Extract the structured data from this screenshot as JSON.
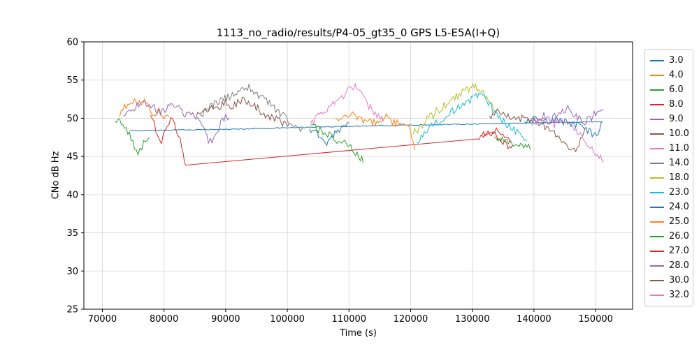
{
  "window": {
    "background_color": "#ffffff"
  },
  "chart_data": {
    "type": "line",
    "title": "1113_no_radio/results/P4-05_gt35_0 GPS L5-E5A(I+Q)",
    "xlabel": "Time (s)",
    "ylabel": "CNo dB Hz",
    "xlim": [
      67000,
      156000
    ],
    "ylim": [
      25,
      60
    ],
    "grid": true,
    "grid_color": "#d4d4d4",
    "axis_color": "#000000",
    "legend_position": "outside-right",
    "x_ticks": [
      70000,
      80000,
      90000,
      100000,
      110000,
      120000,
      130000,
      140000,
      150000
    ],
    "x_tick_labels": [
      "70000",
      "80000",
      "90000",
      "100000",
      "110000",
      "120000",
      "130000",
      "140000",
      "150000"
    ],
    "y_ticks": [
      25,
      30,
      35,
      40,
      45,
      50,
      55,
      60
    ],
    "y_tick_labels": [
      "25",
      "30",
      "35",
      "40",
      "45",
      "50",
      "55",
      "60"
    ],
    "series": [
      {
        "name": "3.0",
        "color": "#1f77b4",
        "noise": 0.06,
        "connect_gaps": true,
        "points": [
          [
            74500,
            48.35
          ],
          [
            80000,
            48.45
          ],
          [
            90000,
            48.55
          ],
          [
            100000,
            48.75
          ],
          [
            110000,
            48.95
          ],
          [
            120000,
            49.1
          ],
          [
            130000,
            49.25
          ],
          [
            140000,
            49.4
          ],
          [
            151000,
            49.55
          ]
        ]
      },
      {
        "name": "4.0",
        "color": "#ff7f0e",
        "noise": 0.55,
        "connect_gaps": false,
        "points": [
          [
            72800,
            50.2
          ],
          [
            73600,
            51.3
          ],
          [
            74400,
            52.2
          ],
          [
            75200,
            52.4
          ],
          [
            76000,
            51.8
          ],
          [
            76800,
            52.2
          ],
          [
            77600,
            51.2
          ],
          [
            78400,
            50.6
          ],
          [
            79200,
            50.9
          ],
          [
            80000,
            50.3
          ],
          [
            80800,
            49.9
          ]
        ]
      },
      {
        "name": "6.0",
        "color": "#2ca02c",
        "noise": 0.45,
        "connect_gaps": false,
        "points": [
          [
            72000,
            49.6
          ],
          [
            72800,
            49.9
          ],
          [
            73600,
            48.9
          ],
          [
            74400,
            47.8
          ],
          [
            75200,
            46.4
          ],
          [
            75800,
            45.1
          ],
          [
            76400,
            46.2
          ],
          [
            77000,
            47.3
          ],
          [
            77600,
            47.6
          ]
        ]
      },
      {
        "name": "8.0",
        "color": "#d62728",
        "noise": 0.5,
        "connect_gaps": true,
        "points": [
          [
            77800,
            50.4
          ],
          [
            78400,
            49.6
          ],
          [
            79000,
            47.6
          ],
          [
            79600,
            47.1
          ],
          [
            80200,
            48.3
          ],
          [
            80800,
            49.6
          ],
          [
            81400,
            49.9
          ],
          [
            82000,
            48.3
          ],
          [
            82600,
            47.2
          ],
          [
            83100,
            45.6
          ],
          [
            83500,
            43.8
          ],
          [
            130900,
            47.3
          ],
          [
            131800,
            48.2
          ],
          [
            132600,
            47.6
          ],
          [
            133400,
            48.4
          ],
          [
            134200,
            47.4
          ],
          [
            135000,
            46.9
          ],
          [
            135800,
            46.3
          ],
          [
            136500,
            46.0
          ]
        ]
      },
      {
        "name": "9.0",
        "color": "#9467bd",
        "noise": 0.5,
        "connect_gaps": false,
        "points": [
          [
            73400,
            50.3
          ],
          [
            74400,
            51.0
          ],
          [
            75400,
            51.6
          ],
          [
            76400,
            51.9
          ],
          [
            77400,
            52.1
          ],
          [
            78400,
            51.4
          ],
          [
            79400,
            50.8
          ],
          [
            80400,
            51.3
          ],
          [
            81400,
            51.7
          ],
          [
            82400,
            51.2
          ],
          [
            83400,
            50.6
          ],
          [
            84400,
            50.9
          ],
          [
            85400,
            50.2
          ],
          [
            86400,
            49.2
          ],
          [
            87200,
            47.2
          ],
          [
            87800,
            46.6
          ],
          [
            88400,
            47.8
          ],
          [
            89200,
            49.3
          ],
          [
            90000,
            50.1
          ],
          [
            90600,
            49.6
          ]
        ]
      },
      {
        "name": "10.0",
        "color": "#8c564b",
        "noise": 0.55,
        "connect_gaps": false,
        "points": [
          [
            85200,
            50.1
          ],
          [
            86200,
            50.8
          ],
          [
            87200,
            51.3
          ],
          [
            88200,
            51.0
          ],
          [
            89200,
            51.6
          ],
          [
            90200,
            52.0
          ],
          [
            91200,
            51.7
          ],
          [
            92200,
            52.2
          ],
          [
            93200,
            52.4
          ],
          [
            94200,
            51.8
          ],
          [
            95200,
            51.2
          ],
          [
            96200,
            50.6
          ],
          [
            97200,
            50.2
          ],
          [
            98200,
            49.8
          ],
          [
            99200,
            49.5
          ],
          [
            100300,
            49.2
          ]
        ]
      },
      {
        "name": "11.0",
        "color": "#e377c2",
        "noise": 0.5,
        "connect_gaps": false,
        "points": [
          [
            103800,
            49.3
          ],
          [
            105000,
            50.2
          ],
          [
            106200,
            51.0
          ],
          [
            107400,
            51.8
          ],
          [
            108600,
            52.6
          ],
          [
            109600,
            53.4
          ],
          [
            110400,
            54.0
          ],
          [
            111000,
            54.4
          ],
          [
            111700,
            53.6
          ],
          [
            112400,
            52.6
          ],
          [
            113200,
            51.6
          ],
          [
            114000,
            50.8
          ],
          [
            114800,
            50.2
          ],
          [
            115600,
            49.7
          ]
        ]
      },
      {
        "name": "14.0",
        "color": "#7f7f7f",
        "noise": 0.5,
        "connect_gaps": false,
        "points": [
          [
            85800,
            50.4
          ],
          [
            87000,
            51.1
          ],
          [
            88200,
            51.9
          ],
          [
            89400,
            52.4
          ],
          [
            90600,
            52.9
          ],
          [
            91800,
            53.3
          ],
          [
            93000,
            53.9
          ],
          [
            93800,
            54.1
          ],
          [
            94600,
            53.5
          ],
          [
            95600,
            52.8
          ],
          [
            96600,
            52.2
          ],
          [
            97600,
            51.5
          ],
          [
            98600,
            50.8
          ],
          [
            99600,
            50.1
          ],
          [
            100600,
            49.4
          ],
          [
            101600,
            48.9
          ],
          [
            102600,
            48.5
          ]
        ]
      },
      {
        "name": "18.0",
        "color": "#bcbd22",
        "noise": 0.6,
        "connect_gaps": false,
        "points": [
          [
            120400,
            47.9
          ],
          [
            121400,
            48.8
          ],
          [
            122400,
            49.6
          ],
          [
            123400,
            50.3
          ],
          [
            124400,
            51.0
          ],
          [
            125400,
            51.6
          ],
          [
            126400,
            52.2
          ],
          [
            127400,
            52.8
          ],
          [
            128400,
            53.3
          ],
          [
            129400,
            53.8
          ],
          [
            130300,
            54.2
          ],
          [
            131000,
            53.8
          ],
          [
            131800,
            53.2
          ],
          [
            132600,
            52.4
          ],
          [
            133400,
            51.6
          ],
          [
            134100,
            51.0
          ]
        ]
      },
      {
        "name": "23.0",
        "color": "#17becf",
        "noise": 0.5,
        "connect_gaps": false,
        "points": [
          [
            121000,
            46.9
          ],
          [
            122200,
            48.0
          ],
          [
            123400,
            48.9
          ],
          [
            124600,
            49.6
          ],
          [
            125800,
            50.3
          ],
          [
            127000,
            51.0
          ],
          [
            128200,
            51.7
          ],
          [
            129400,
            52.3
          ],
          [
            130600,
            52.8
          ],
          [
            131500,
            53.0
          ],
          [
            132400,
            52.2
          ],
          [
            133300,
            51.2
          ],
          [
            134200,
            50.3
          ],
          [
            135100,
            49.6
          ],
          [
            136000,
            49.0
          ],
          [
            137000,
            48.3
          ],
          [
            138000,
            47.6
          ],
          [
            138900,
            47.1
          ]
        ]
      },
      {
        "name": "24.0",
        "color": "#1f77b4",
        "noise": 0.45,
        "connect_gaps": false,
        "points": [
          [
            103600,
            48.6
          ],
          [
            104600,
            48.1
          ],
          [
            105600,
            47.4
          ],
          [
            106400,
            46.8
          ],
          [
            107200,
            47.6
          ],
          [
            108200,
            48.4
          ],
          [
            109200,
            48.9
          ],
          [
            110000,
            49.2
          ],
          [
            138500,
            49.6
          ],
          [
            140000,
            49.9
          ],
          [
            141500,
            49.5
          ],
          [
            143000,
            49.8
          ],
          [
            144500,
            49.6
          ],
          [
            146000,
            49.3
          ],
          [
            147500,
            49.0
          ],
          [
            148700,
            48.4
          ],
          [
            149700,
            47.9
          ],
          [
            150400,
            47.6
          ],
          [
            151200,
            49.8
          ]
        ]
      },
      {
        "name": "25.0",
        "color": "#ff7f0e",
        "noise": 0.55,
        "connect_gaps": false,
        "points": [
          [
            107800,
            50.0
          ],
          [
            108800,
            50.4
          ],
          [
            109800,
            50.1
          ],
          [
            110800,
            50.5
          ],
          [
            111800,
            50.0
          ],
          [
            112800,
            49.6
          ],
          [
            113800,
            49.3
          ],
          [
            114800,
            49.9
          ],
          [
            115800,
            50.2
          ],
          [
            116800,
            49.7
          ],
          [
            117800,
            49.3
          ],
          [
            118800,
            49.6
          ],
          [
            119600,
            48.9
          ],
          [
            120200,
            47.6
          ],
          [
            120700,
            46.1
          ]
        ]
      },
      {
        "name": "26.0",
        "color": "#2ca02c",
        "noise": 0.5,
        "connect_gaps": false,
        "points": [
          [
            103800,
            49.1
          ],
          [
            104800,
            48.7
          ],
          [
            105800,
            48.3
          ],
          [
            106800,
            47.8
          ],
          [
            107800,
            47.3
          ],
          [
            108800,
            46.9
          ],
          [
            109800,
            46.4
          ],
          [
            110800,
            45.8
          ],
          [
            111600,
            45.0
          ],
          [
            112300,
            44.6
          ],
          [
            133600,
            47.6
          ],
          [
            134600,
            47.2
          ],
          [
            135600,
            47.0
          ],
          [
            136600,
            46.8
          ],
          [
            137600,
            46.6
          ],
          [
            138600,
            46.4
          ],
          [
            139400,
            46.2
          ]
        ]
      },
      {
        "name": "27.0",
        "color": "#d62728",
        "noise": 0.5,
        "connect_gaps": false,
        "points": [
          [
            131500,
            47.8
          ],
          [
            132300,
            48.4
          ],
          [
            133100,
            47.9
          ],
          [
            133900,
            48.5
          ],
          [
            134700,
            47.8
          ],
          [
            135500,
            47.3
          ],
          [
            136300,
            46.8
          ]
        ]
      },
      {
        "name": "28.0",
        "color": "#9467bd",
        "noise": 0.5,
        "connect_gaps": false,
        "points": [
          [
            139600,
            49.1
          ],
          [
            140600,
            49.9
          ],
          [
            141600,
            50.4
          ],
          [
            142600,
            49.8
          ],
          [
            143600,
            50.3
          ],
          [
            144600,
            50.9
          ],
          [
            145500,
            51.3
          ],
          [
            146400,
            50.6
          ],
          [
            147300,
            49.9
          ],
          [
            148200,
            49.4
          ],
          [
            149100,
            50.0
          ],
          [
            150000,
            50.6
          ],
          [
            150800,
            51.1
          ],
          [
            151300,
            50.8
          ]
        ]
      },
      {
        "name": "30.0",
        "color": "#8c564b",
        "noise": 0.5,
        "connect_gaps": false,
        "points": [
          [
            132800,
            50.3
          ],
          [
            133800,
            50.9
          ],
          [
            134800,
            50.5
          ],
          [
            135800,
            50.1
          ],
          [
            136800,
            50.4
          ],
          [
            137800,
            49.9
          ],
          [
            138800,
            50.2
          ],
          [
            139800,
            49.6
          ],
          [
            140800,
            49.2
          ],
          [
            141800,
            48.8
          ],
          [
            142800,
            48.3
          ],
          [
            143800,
            47.7
          ],
          [
            144800,
            46.9
          ],
          [
            145700,
            46.2
          ],
          [
            146500,
            45.8
          ],
          [
            147300,
            46.6
          ],
          [
            148000,
            47.9
          ],
          [
            148500,
            48.6
          ]
        ]
      },
      {
        "name": "32.0",
        "color": "#e377c2",
        "noise": 0.5,
        "connect_gaps": false,
        "points": [
          [
            140300,
            49.7
          ],
          [
            141300,
            50.2
          ],
          [
            142300,
            49.6
          ],
          [
            143300,
            49.2
          ],
          [
            144300,
            50.0
          ],
          [
            145300,
            49.6
          ],
          [
            146300,
            48.9
          ],
          [
            147300,
            48.1
          ],
          [
            148300,
            47.2
          ],
          [
            149200,
            46.2
          ],
          [
            150100,
            45.3
          ],
          [
            150800,
            44.9
          ],
          [
            151300,
            44.7
          ]
        ]
      }
    ]
  }
}
